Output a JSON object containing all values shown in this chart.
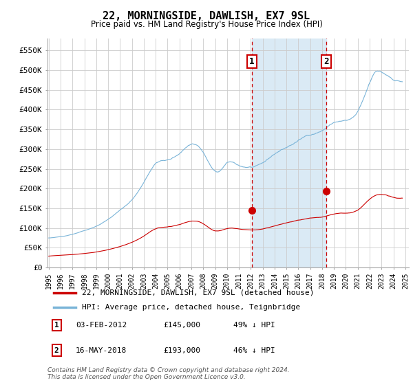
{
  "title": "22, MORNINGSIDE, DAWLISH, EX7 9SL",
  "subtitle": "Price paid vs. HM Land Registry's House Price Index (HPI)",
  "ylabel_ticks": [
    "£0",
    "£50K",
    "£100K",
    "£150K",
    "£200K",
    "£250K",
    "£300K",
    "£350K",
    "£400K",
    "£450K",
    "£500K",
    "£550K"
  ],
  "ytick_values": [
    0,
    50000,
    100000,
    150000,
    200000,
    250000,
    300000,
    350000,
    400000,
    450000,
    500000,
    550000
  ],
  "ylim": [
    0,
    580000
  ],
  "xlim_start": 1994.9,
  "xlim_end": 2025.3,
  "transaction1_x": 2012.09,
  "transaction1_y": 145000,
  "transaction1_label": "1",
  "transaction1_date": "03-FEB-2012",
  "transaction1_price": "£145,000",
  "transaction1_pct": "49% ↓ HPI",
  "transaction2_x": 2018.37,
  "transaction2_y": 193000,
  "transaction2_label": "2",
  "transaction2_date": "16-MAY-2018",
  "transaction2_price": "£193,000",
  "transaction2_pct": "46% ↓ HPI",
  "hpi_color": "#7ab4d8",
  "price_color": "#cc0000",
  "vline_color": "#cc0000",
  "shade_color": "#daeaf5",
  "grid_color": "#cccccc",
  "background_color": "#ffffff",
  "legend_label1": "22, MORNINGSIDE, DAWLISH, EX7 9SL (detached house)",
  "legend_label2": "HPI: Average price, detached house, Teignbridge",
  "footer": "Contains HM Land Registry data © Crown copyright and database right 2024.\nThis data is licensed under the Open Government Licence v3.0."
}
